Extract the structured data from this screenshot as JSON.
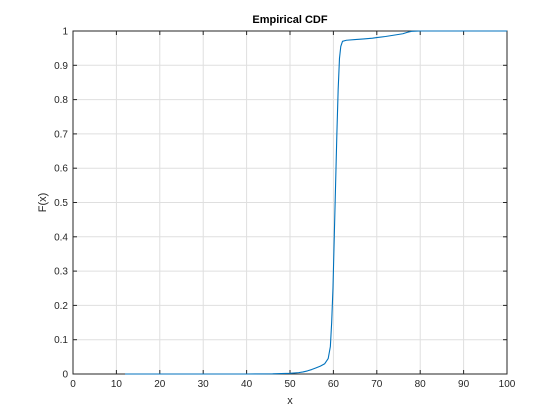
{
  "chart_data": {
    "type": "line",
    "title": "Empirical CDF",
    "xlabel": "x",
    "ylabel": "F(x)",
    "xlim": [
      0,
      100
    ],
    "ylim": [
      0,
      1
    ],
    "xticks": [
      0,
      10,
      20,
      30,
      40,
      50,
      60,
      70,
      80,
      90,
      100
    ],
    "yticks": [
      0,
      0.1,
      0.2,
      0.3,
      0.4,
      0.5,
      0.6,
      0.7,
      0.8,
      0.9,
      1
    ],
    "grid": true,
    "series": [
      {
        "color": "#0072BD",
        "x": [
          12,
          20,
          30,
          40,
          46,
          50,
          52,
          53,
          54,
          55,
          56,
          57,
          58,
          58.8,
          59.3,
          59.6,
          59.9,
          60.2,
          60.5,
          60.8,
          61.1,
          61.4,
          61.7,
          62.1,
          63,
          65,
          67,
          69,
          70,
          72,
          74,
          76,
          77,
          78,
          80,
          90,
          100
        ],
        "y": [
          0,
          0,
          0,
          0,
          0.0005,
          0.002,
          0.004,
          0.006,
          0.009,
          0.013,
          0.018,
          0.023,
          0.03,
          0.045,
          0.08,
          0.15,
          0.25,
          0.4,
          0.55,
          0.7,
          0.83,
          0.92,
          0.955,
          0.97,
          0.973,
          0.975,
          0.977,
          0.979,
          0.981,
          0.984,
          0.988,
          0.992,
          0.996,
          0.999,
          1,
          1,
          1
        ]
      }
    ]
  }
}
